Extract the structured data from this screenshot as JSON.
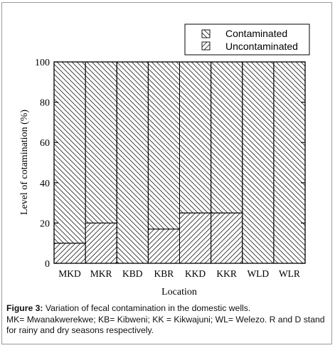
{
  "chart_data": {
    "type": "bar",
    "stacked": true,
    "categories": [
      "MKD",
      "MKR",
      "KBD",
      "KBR",
      "KKD",
      "KKR",
      "WLD",
      "WLR"
    ],
    "series": [
      {
        "name": "Contaminated",
        "values": [
          90,
          80,
          100,
          83,
          75,
          75,
          100,
          100
        ]
      },
      {
        "name": "Uncontaminated",
        "values": [
          10,
          20,
          0,
          17,
          25,
          25,
          0,
          0
        ]
      }
    ],
    "xlabel": "Location",
    "ylabel": "Level of cotamination (%)",
    "ylim": [
      0,
      100
    ],
    "yticks": [
      0,
      20,
      40,
      60,
      80,
      100
    ],
    "grid": false,
    "legend_position": "top-right"
  },
  "caption": {
    "label": "Figure 3:",
    "title": " Variation of fecal contamination in the domestic wells.",
    "note": "MK=  Mwanakwerekwe; KB= Kibweni; KK = Kikwajuni; WL= Welezo. R and D stand for rainy and dry seasons respectively."
  }
}
